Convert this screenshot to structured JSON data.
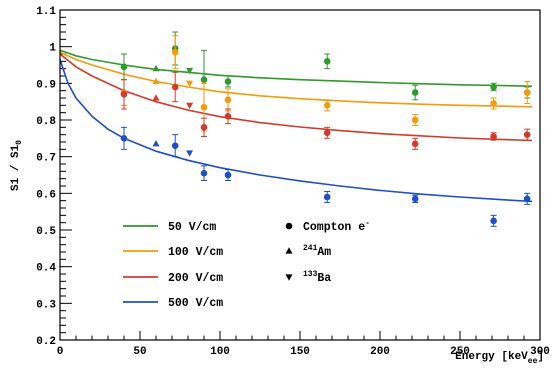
{
  "chart_data": {
    "type": "scatter",
    "xlabel": "Energy [keV",
    "xlabel_sub": "ee",
    "xlabel_close": "]",
    "ylabel": "S1 / S1",
    "ylabel_sub": "0",
    "xlim": [
      0,
      300
    ],
    "ylim": [
      0.2,
      1.1
    ],
    "x_ticks": [
      0,
      50,
      100,
      150,
      200,
      250,
      300
    ],
    "y_ticks": [
      0.2,
      0.3,
      0.4,
      0.5,
      0.6,
      0.7,
      0.8,
      0.9,
      1.0,
      1.1
    ],
    "y_tick_labels": [
      "0.2",
      "0.3",
      "0.4",
      "0.5",
      "0.6",
      "0.7",
      "0.8",
      "0.9",
      "1",
      "1.1"
    ],
    "grid": false,
    "legend_placement": "bottom-left",
    "series": [
      {
        "name": "50 V/cm",
        "color": "#2e9a2e",
        "fit": [
          [
            0,
            0.99
          ],
          [
            10,
            0.975
          ],
          [
            20,
            0.965
          ],
          [
            40,
            0.95
          ],
          [
            60,
            0.938
          ],
          [
            80,
            0.93
          ],
          [
            100,
            0.922
          ],
          [
            125,
            0.915
          ],
          [
            150,
            0.91
          ],
          [
            175,
            0.906
          ],
          [
            200,
            0.902
          ],
          [
            225,
            0.899
          ],
          [
            250,
            0.896
          ],
          [
            275,
            0.894
          ],
          [
            295,
            0.892
          ]
        ],
        "points": [
          {
            "x": 40,
            "y": 0.945,
            "err": 0.035,
            "marker": "circle"
          },
          {
            "x": 60,
            "y": 0.94,
            "err": 0,
            "marker": "triangle-up"
          },
          {
            "x": 72,
            "y": 0.995,
            "err": 0.045,
            "marker": "circle"
          },
          {
            "x": 81,
            "y": 0.935,
            "err": 0,
            "marker": "triangle-down"
          },
          {
            "x": 90,
            "y": 0.91,
            "err": 0.08,
            "marker": "circle"
          },
          {
            "x": 105,
            "y": 0.905,
            "err": 0.015,
            "marker": "circle"
          },
          {
            "x": 167,
            "y": 0.96,
            "err": 0.02,
            "marker": "circle"
          },
          {
            "x": 222,
            "y": 0.875,
            "err": 0.02,
            "marker": "circle"
          },
          {
            "x": 271,
            "y": 0.89,
            "err": 0.01,
            "marker": "circle"
          },
          {
            "x": 292,
            "y": 0.875,
            "err": 0.015,
            "marker": "circle"
          }
        ]
      },
      {
        "name": "100 V/cm",
        "color": "#f59a0a",
        "fit": [
          [
            0,
            0.985
          ],
          [
            10,
            0.965
          ],
          [
            20,
            0.95
          ],
          [
            40,
            0.925
          ],
          [
            60,
            0.905
          ],
          [
            80,
            0.89
          ],
          [
            100,
            0.877
          ],
          [
            125,
            0.866
          ],
          [
            150,
            0.858
          ],
          [
            175,
            0.852
          ],
          [
            200,
            0.847
          ],
          [
            225,
            0.843
          ],
          [
            250,
            0.84
          ],
          [
            275,
            0.838
          ],
          [
            295,
            0.836
          ]
        ],
        "points": [
          {
            "x": 40,
            "y": 0.875,
            "err": 0.035,
            "marker": "circle"
          },
          {
            "x": 60,
            "y": 0.905,
            "err": 0,
            "marker": "triangle-up"
          },
          {
            "x": 72,
            "y": 0.985,
            "err": 0.045,
            "marker": "circle"
          },
          {
            "x": 81,
            "y": 0.9,
            "err": 0,
            "marker": "triangle-down"
          },
          {
            "x": 90,
            "y": 0.835,
            "err": 0.065,
            "marker": "circle"
          },
          {
            "x": 105,
            "y": 0.855,
            "err": 0.03,
            "marker": "circle"
          },
          {
            "x": 167,
            "y": 0.84,
            "err": 0.015,
            "marker": "circle"
          },
          {
            "x": 222,
            "y": 0.8,
            "err": 0.015,
            "marker": "circle"
          },
          {
            "x": 271,
            "y": 0.845,
            "err": 0.015,
            "marker": "circle"
          },
          {
            "x": 292,
            "y": 0.875,
            "err": 0.03,
            "marker": "circle"
          }
        ]
      },
      {
        "name": "200 V/cm",
        "color": "#d43a2a",
        "fit": [
          [
            0,
            0.98
          ],
          [
            10,
            0.945
          ],
          [
            20,
            0.92
          ],
          [
            40,
            0.88
          ],
          [
            60,
            0.85
          ],
          [
            80,
            0.827
          ],
          [
            100,
            0.809
          ],
          [
            125,
            0.793
          ],
          [
            150,
            0.781
          ],
          [
            175,
            0.771
          ],
          [
            200,
            0.763
          ],
          [
            225,
            0.757
          ],
          [
            250,
            0.751
          ],
          [
            275,
            0.747
          ],
          [
            295,
            0.744
          ]
        ],
        "points": [
          {
            "x": 40,
            "y": 0.87,
            "err": 0.04,
            "marker": "circle"
          },
          {
            "x": 60,
            "y": 0.86,
            "err": 0,
            "marker": "triangle-up"
          },
          {
            "x": 72,
            "y": 0.89,
            "err": 0.04,
            "marker": "circle"
          },
          {
            "x": 81,
            "y": 0.84,
            "err": 0,
            "marker": "triangle-down"
          },
          {
            "x": 90,
            "y": 0.78,
            "err": 0.025,
            "marker": "circle"
          },
          {
            "x": 105,
            "y": 0.81,
            "err": 0.02,
            "marker": "circle"
          },
          {
            "x": 167,
            "y": 0.765,
            "err": 0.015,
            "marker": "circle"
          },
          {
            "x": 222,
            "y": 0.735,
            "err": 0.015,
            "marker": "circle"
          },
          {
            "x": 271,
            "y": 0.755,
            "err": 0.01,
            "marker": "circle"
          },
          {
            "x": 292,
            "y": 0.76,
            "err": 0.015,
            "marker": "circle"
          }
        ]
      },
      {
        "name": "500 V/cm",
        "color": "#1f4fc8",
        "fit": [
          [
            0,
            0.965
          ],
          [
            5,
            0.9
          ],
          [
            10,
            0.86
          ],
          [
            20,
            0.81
          ],
          [
            30,
            0.775
          ],
          [
            40,
            0.75
          ],
          [
            60,
            0.715
          ],
          [
            80,
            0.69
          ],
          [
            100,
            0.67
          ],
          [
            125,
            0.65
          ],
          [
            150,
            0.634
          ],
          [
            175,
            0.62
          ],
          [
            200,
            0.608
          ],
          [
            225,
            0.598
          ],
          [
            250,
            0.59
          ],
          [
            275,
            0.583
          ],
          [
            295,
            0.578
          ]
        ],
        "points": [
          {
            "x": 40,
            "y": 0.75,
            "err": 0.03,
            "marker": "circle"
          },
          {
            "x": 60,
            "y": 0.735,
            "err": 0,
            "marker": "triangle-up"
          },
          {
            "x": 72,
            "y": 0.73,
            "err": 0.03,
            "marker": "circle"
          },
          {
            "x": 81,
            "y": 0.71,
            "err": 0,
            "marker": "triangle-down"
          },
          {
            "x": 90,
            "y": 0.655,
            "err": 0.02,
            "marker": "circle"
          },
          {
            "x": 105,
            "y": 0.65,
            "err": 0.015,
            "marker": "circle"
          },
          {
            "x": 167,
            "y": 0.59,
            "err": 0.015,
            "marker": "circle"
          },
          {
            "x": 222,
            "y": 0.585,
            "err": 0.01,
            "marker": "circle"
          },
          {
            "x": 271,
            "y": 0.525,
            "err": 0.015,
            "marker": "circle"
          },
          {
            "x": 292,
            "y": 0.585,
            "err": 0.015,
            "marker": "circle"
          }
        ]
      }
    ],
    "marker_legend": [
      {
        "marker": "circle",
        "label": "Compton e",
        "sup": "-",
        "sup_before": false
      },
      {
        "marker": "triangle-up",
        "label": "Am",
        "sup": "241",
        "sup_before": true
      },
      {
        "marker": "triangle-down",
        "label": "Ba",
        "sup": "133",
        "sup_before": true
      }
    ]
  }
}
